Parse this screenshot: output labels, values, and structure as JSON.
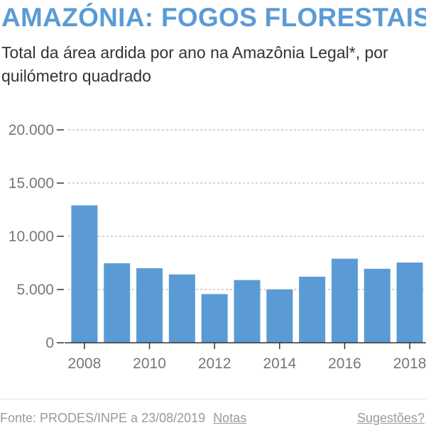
{
  "header": {
    "title": "AMAZÓNIA: FOGOS FLORESTAIS",
    "subtitle": "Total da área ardida por ano na Amazônia Legal*, por quilómetro quadrado"
  },
  "colors": {
    "title": "#5b9bd5",
    "bar": "#5b9bd5",
    "grid": "#bbbbbb",
    "axis": "#333333"
  },
  "chart_data": {
    "type": "bar",
    "title": "",
    "xlabel": "",
    "ylabel": "",
    "categories": [
      "2008",
      "2009",
      "2010",
      "2011",
      "2012",
      "2013",
      "2014",
      "2015",
      "2016",
      "2017",
      "2018"
    ],
    "values": [
      12911,
      7464,
      7000,
      6418,
      4571,
      5891,
      5012,
      6207,
      7893,
      6947,
      7536
    ],
    "x_tick_labels": [
      "2008",
      "2010",
      "2012",
      "2014",
      "2016",
      "2018"
    ],
    "y_ticks": [
      0,
      5000,
      10000,
      15000,
      20000
    ],
    "y_tick_labels": [
      "0",
      "5.000",
      "10.000",
      "15.000",
      "20.000"
    ],
    "ylim": [
      0,
      20000
    ],
    "grid": true,
    "legend": "none"
  },
  "footer": {
    "source": "Fonte: PRODES/INPE a 23/08/2019",
    "notes_link": "Notas",
    "suggestions_link": "Sugestões?"
  }
}
